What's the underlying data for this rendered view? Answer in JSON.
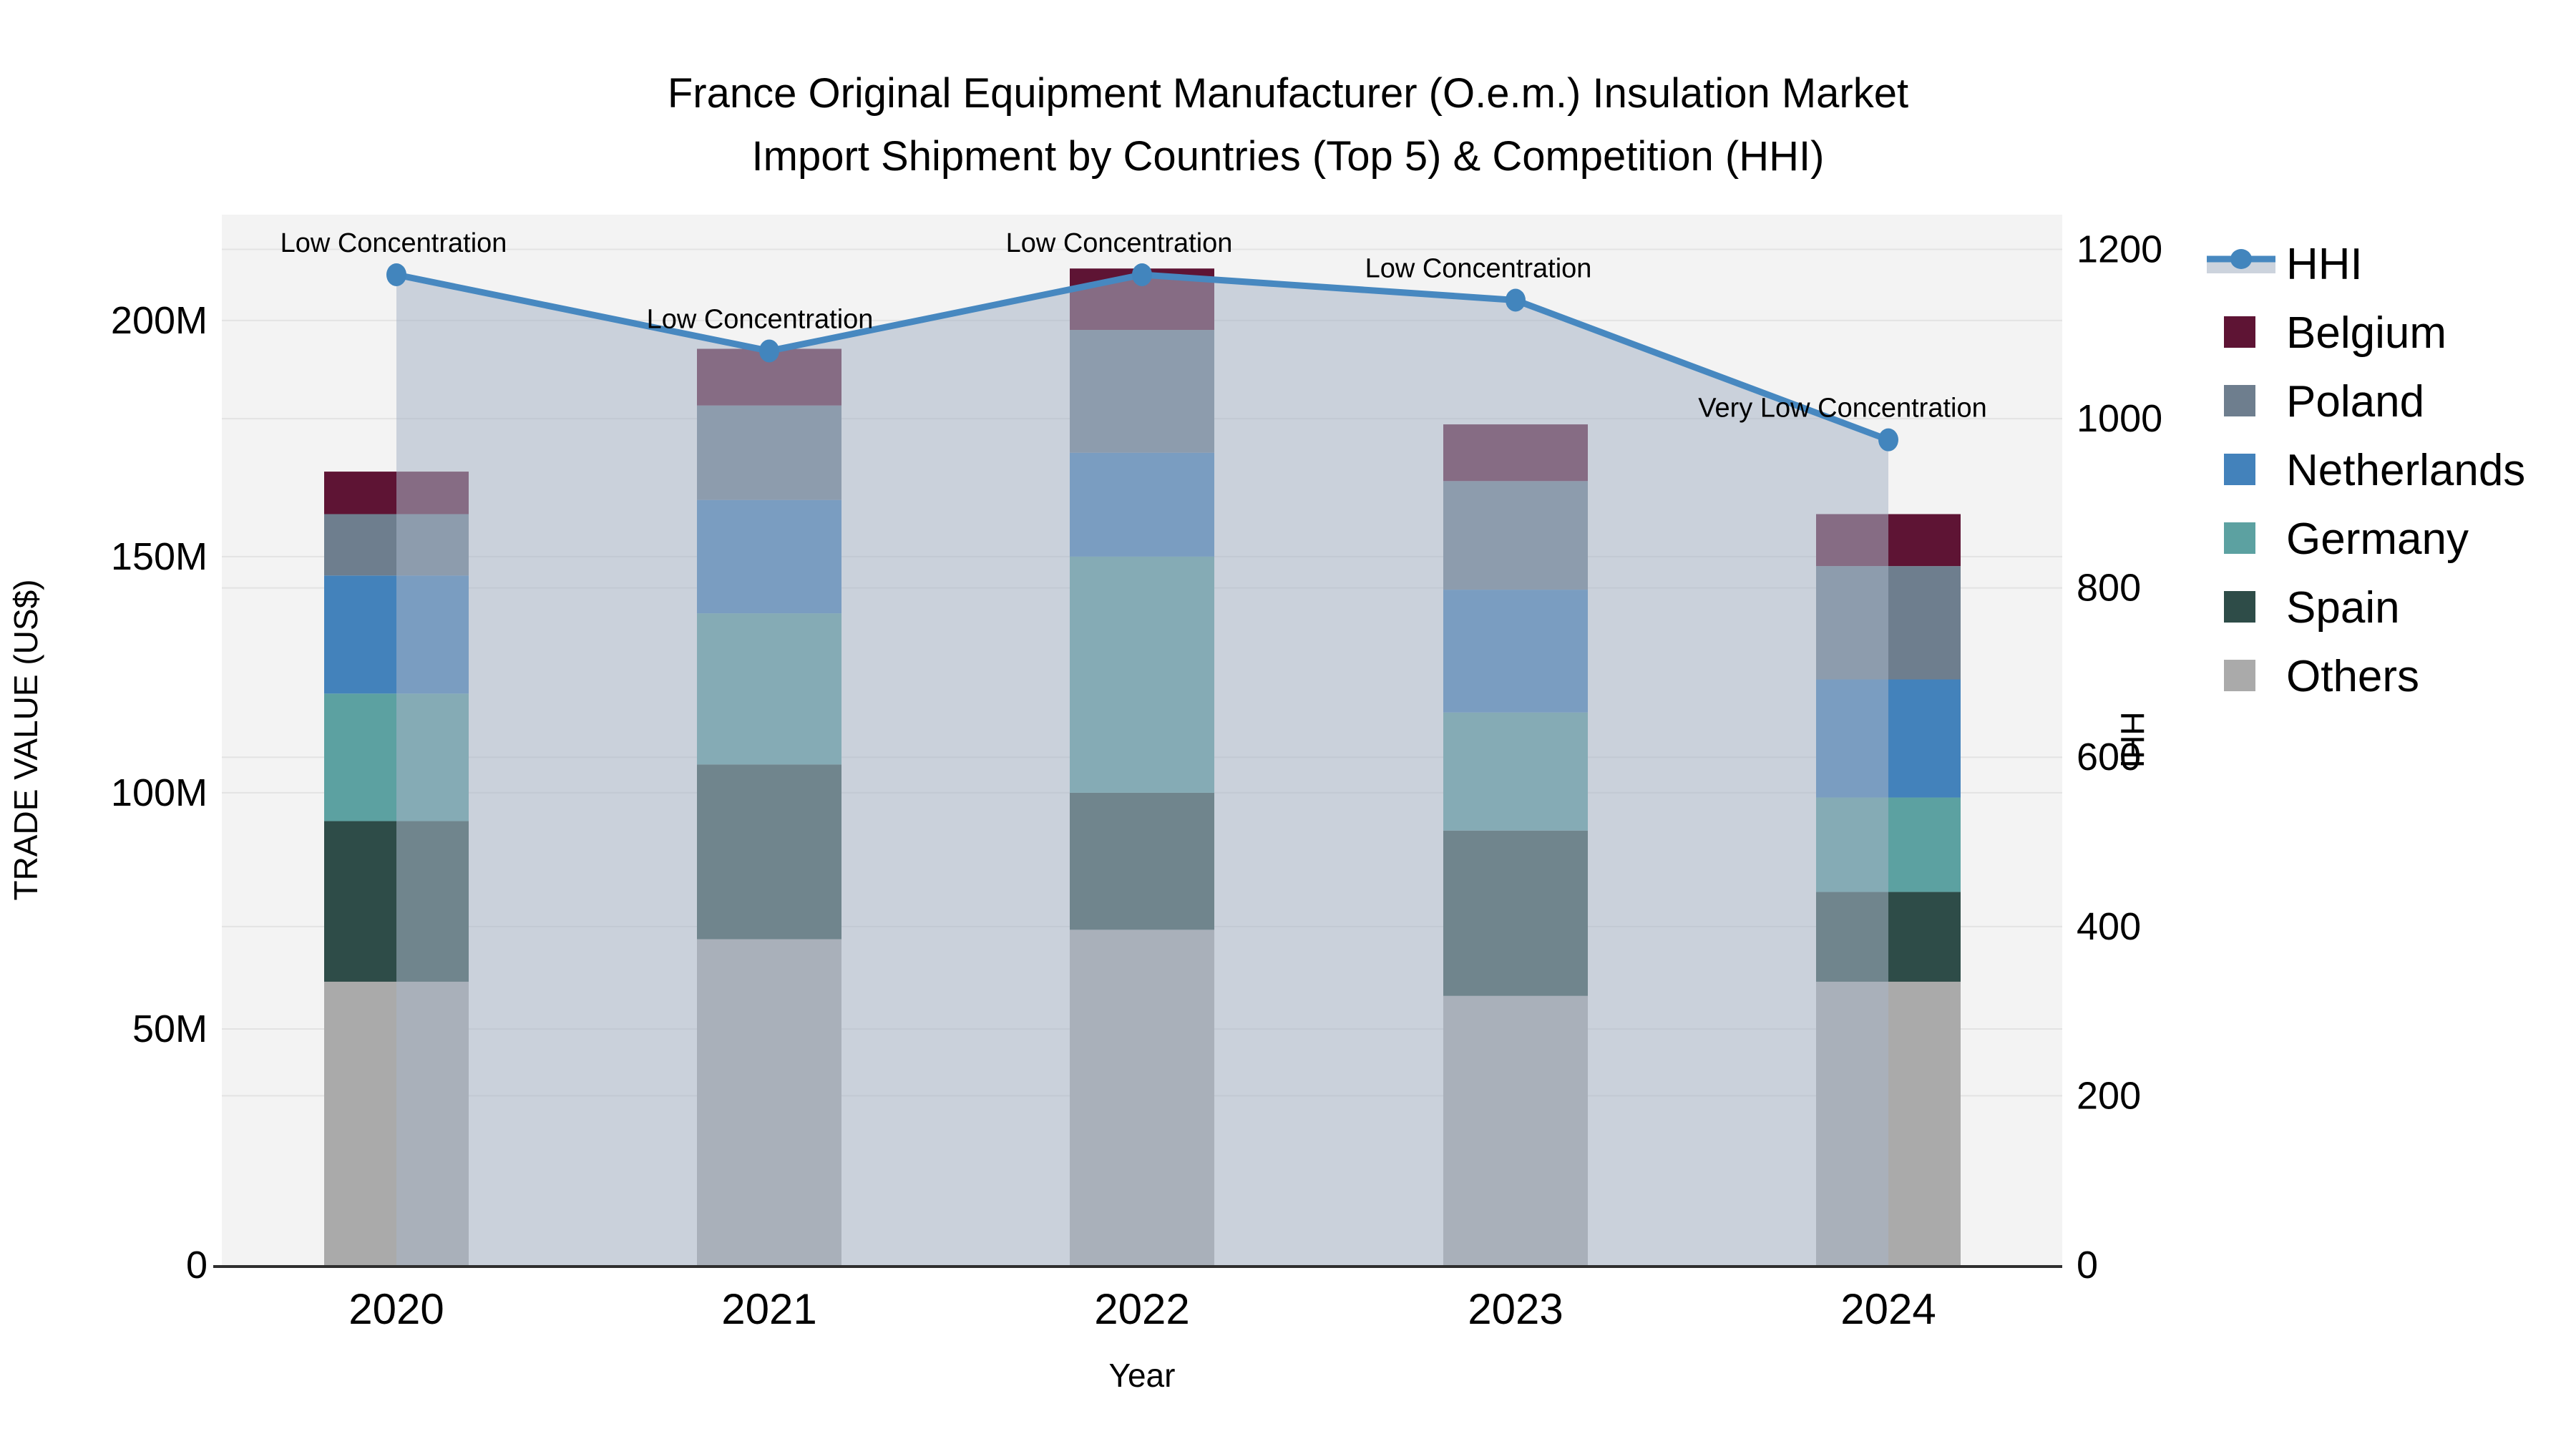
{
  "chart_data": {
    "type": "bar",
    "subtype": "stacked-bar-with-line-area",
    "title_line1": "France Original Equipment Manufacturer (O.e.m.) Insulation Market",
    "title_line2": "Import Shipment by Countries (Top 5) & Competition (HHI)",
    "xlabel": "Year",
    "ylabel_left": "TRADE VALUE (US$)",
    "ylabel_right": "HHI",
    "categories": [
      "2020",
      "2021",
      "2022",
      "2023",
      "2024"
    ],
    "value_unit": "M US$ (millions)",
    "stack_order_bottom_to_top": [
      "Others",
      "Spain",
      "Germany",
      "Netherlands",
      "Poland",
      "Belgium"
    ],
    "series": [
      {
        "name": "Belgium",
        "color": "#5e1434",
        "values": [
          9,
          12,
          13,
          12,
          11
        ]
      },
      {
        "name": "Poland",
        "color": "#6e7e8e",
        "values": [
          13,
          20,
          26,
          23,
          24
        ]
      },
      {
        "name": "Netherlands",
        "color": "#4382bb",
        "values": [
          25,
          24,
          22,
          26,
          25
        ]
      },
      {
        "name": "Germany",
        "color": "#5ca1a1",
        "values": [
          27,
          32,
          50,
          25,
          20
        ]
      },
      {
        "name": "Spain",
        "color": "#2e4c48",
        "values": [
          34,
          37,
          29,
          35,
          19
        ]
      },
      {
        "name": "Others",
        "color": "#aaaaaa",
        "values": [
          60,
          69,
          71,
          57,
          60
        ]
      }
    ],
    "stack_totals": [
      168,
      194,
      211,
      178,
      159
    ],
    "line_series": {
      "name": "HHI",
      "color": "#4788c0",
      "marker_color": "#4285bd",
      "area_color": "#a8b4c6",
      "area_opacity": 0.55,
      "values": [
        1170,
        1080,
        1170,
        1140,
        975
      ],
      "annotations": [
        "Low Concentration",
        "Low Concentration",
        "Low Concentration",
        "Low Concentration",
        "Very Low Concentration"
      ]
    },
    "left_axis": {
      "tick_values": [
        0,
        50,
        100,
        150,
        200
      ],
      "tick_labels": [
        "0",
        "50M",
        "100M",
        "150M",
        "200M"
      ],
      "max": 222.4
    },
    "right_axis": {
      "tick_values": [
        0,
        200,
        400,
        600,
        800,
        1000,
        1200
      ],
      "tick_labels": [
        "0",
        "200",
        "400",
        "600",
        "800",
        "1000",
        "1200"
      ],
      "max": 1241
    },
    "legend": {
      "position": "right",
      "items": [
        "HHI",
        "Belgium",
        "Poland",
        "Netherlands",
        "Germany",
        "Spain",
        "Others"
      ],
      "hhi_band_color": "#ccd3dd"
    },
    "grid": {
      "on": true,
      "color": "#e3e3e3"
    },
    "plot_background": "#f3f3f3",
    "axis_line_color": "#2f2f2f"
  }
}
